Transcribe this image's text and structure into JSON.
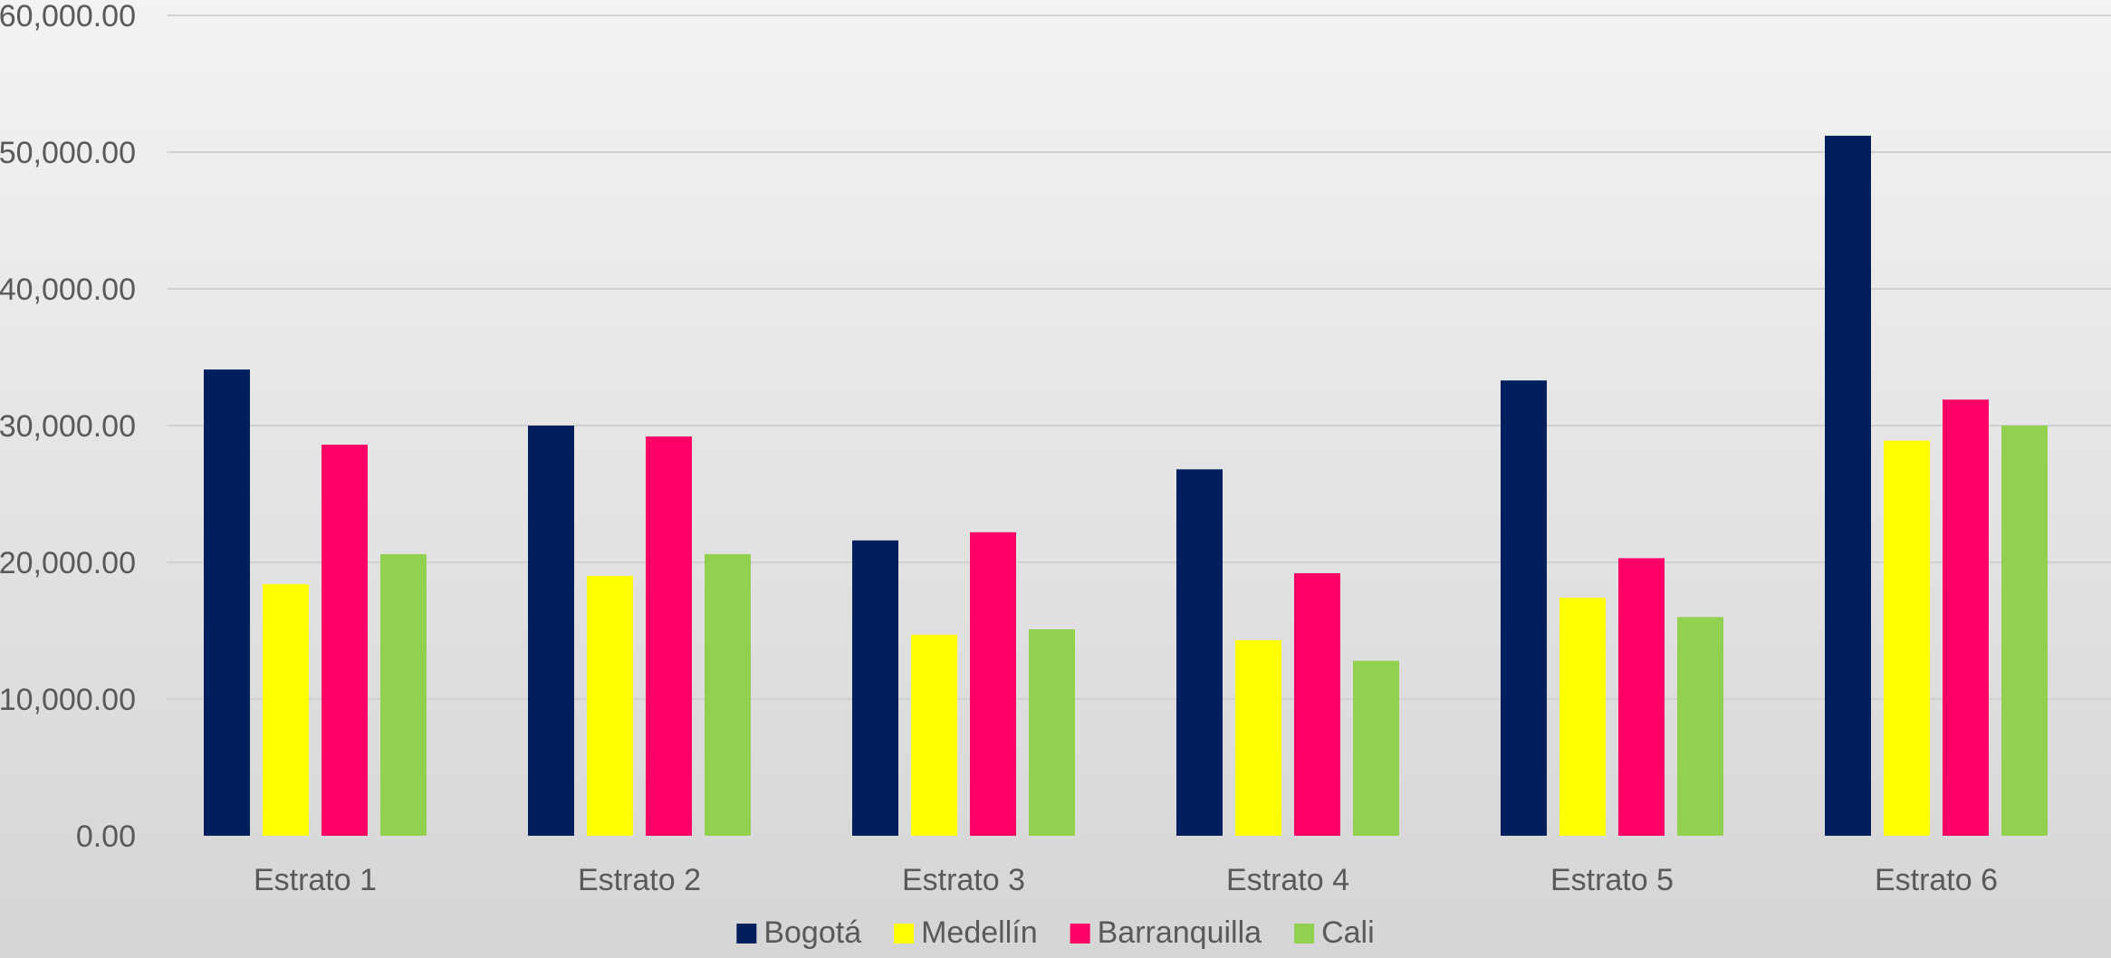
{
  "chart_data": {
    "type": "bar",
    "title": "",
    "xlabel": "",
    "ylabel": "",
    "categories": [
      "Estrato 1",
      "Estrato 2",
      "Estrato 3",
      "Estrato 4",
      "Estrato 5",
      "Estrato 6"
    ],
    "series": [
      {
        "name": "Bogotá",
        "color": "#001f5c",
        "values": [
          34100,
          30000,
          21600,
          26800,
          33300,
          51200
        ]
      },
      {
        "name": "Medellín",
        "color": "#ffff00",
        "values": [
          18400,
          19000,
          14700,
          14300,
          17400,
          28900
        ]
      },
      {
        "name": "Barranquilla",
        "color": "#ff0066",
        "values": [
          28600,
          29200,
          22200,
          19200,
          20300,
          31900
        ]
      },
      {
        "name": "Cali",
        "color": "#92d050",
        "values": [
          20600,
          20600,
          15100,
          12800,
          16000,
          30000
        ]
      }
    ],
    "ylim": [
      0,
      60000
    ],
    "yticks": [
      0,
      10000,
      20000,
      30000,
      40000,
      50000,
      60000
    ],
    "ytick_labels": [
      "0.00",
      "10,000.00",
      "20,000.00",
      "30,000.00",
      "40,000.00",
      "50,000.00",
      "60,000.00"
    ],
    "grid": true,
    "legend": "bottom"
  }
}
